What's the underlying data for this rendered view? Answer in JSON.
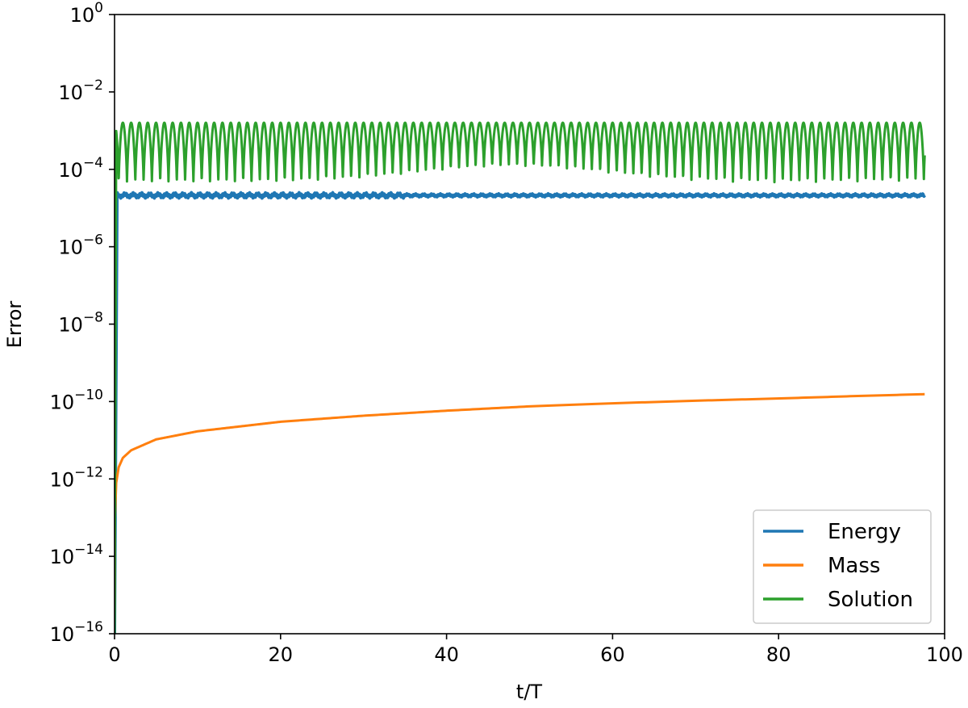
{
  "chart_data": {
    "type": "line",
    "title": "",
    "xlabel": "t/T",
    "ylabel": "Error",
    "xlim": [
      0,
      100
    ],
    "ylim_log10": [
      -16,
      0
    ],
    "yscale": "log",
    "grid": false,
    "legend_position": "lower-right",
    "x_ticks": [
      0,
      20,
      40,
      60,
      80,
      100
    ],
    "y_tick_exponents": [
      0,
      -2,
      -4,
      -6,
      -8,
      -10,
      -12,
      -14,
      -16
    ],
    "y_tick_base": "10",
    "series": [
      {
        "name": "Energy",
        "color": "#1f77b4",
        "description_shape": "noisy band near 2e-5",
        "x": [
          0,
          0.3,
          1,
          5,
          10,
          20,
          30,
          40,
          50,
          60,
          70,
          80,
          90,
          97.6
        ],
        "y": [
          1e-16,
          2.2e-05,
          2.1e-05,
          2.1e-05,
          2.1e-05,
          2.1e-05,
          2.1e-05,
          2.1e-05,
          2.1e-05,
          2.1e-05,
          2.1e-05,
          2.1e-05,
          2.1e-05,
          2.1e-05
        ],
        "osc_low": 1.8e-05,
        "osc_high": 2.5e-05
      },
      {
        "name": "Mass",
        "color": "#ff7f0e",
        "x": [
          0,
          0.05,
          0.2,
          0.5,
          1,
          2,
          5,
          10,
          20,
          30,
          40,
          50,
          60,
          70,
          80,
          90,
          97.6
        ],
        "y": [
          1e-16,
          1e-13,
          8e-13,
          2e-12,
          3.5e-12,
          5.5e-12,
          1.05e-11,
          1.7e-11,
          3e-11,
          4.3e-11,
          5.8e-11,
          7.5e-11,
          9e-11,
          1.05e-10,
          1.2e-10,
          1.4e-10,
          1.55e-10
        ]
      },
      {
        "name": "Solution",
        "color": "#2ca02c",
        "x": [
          0,
          0.2,
          97.6
        ],
        "y": [
          1e-16,
          0.0015,
          0.0012
        ],
        "osc_period": 1.0,
        "osc_high": 0.0016,
        "osc_low_start": 4.5e-05,
        "osc_low_mid": 0.00012,
        "osc_low_end": 5e-05
      }
    ]
  }
}
